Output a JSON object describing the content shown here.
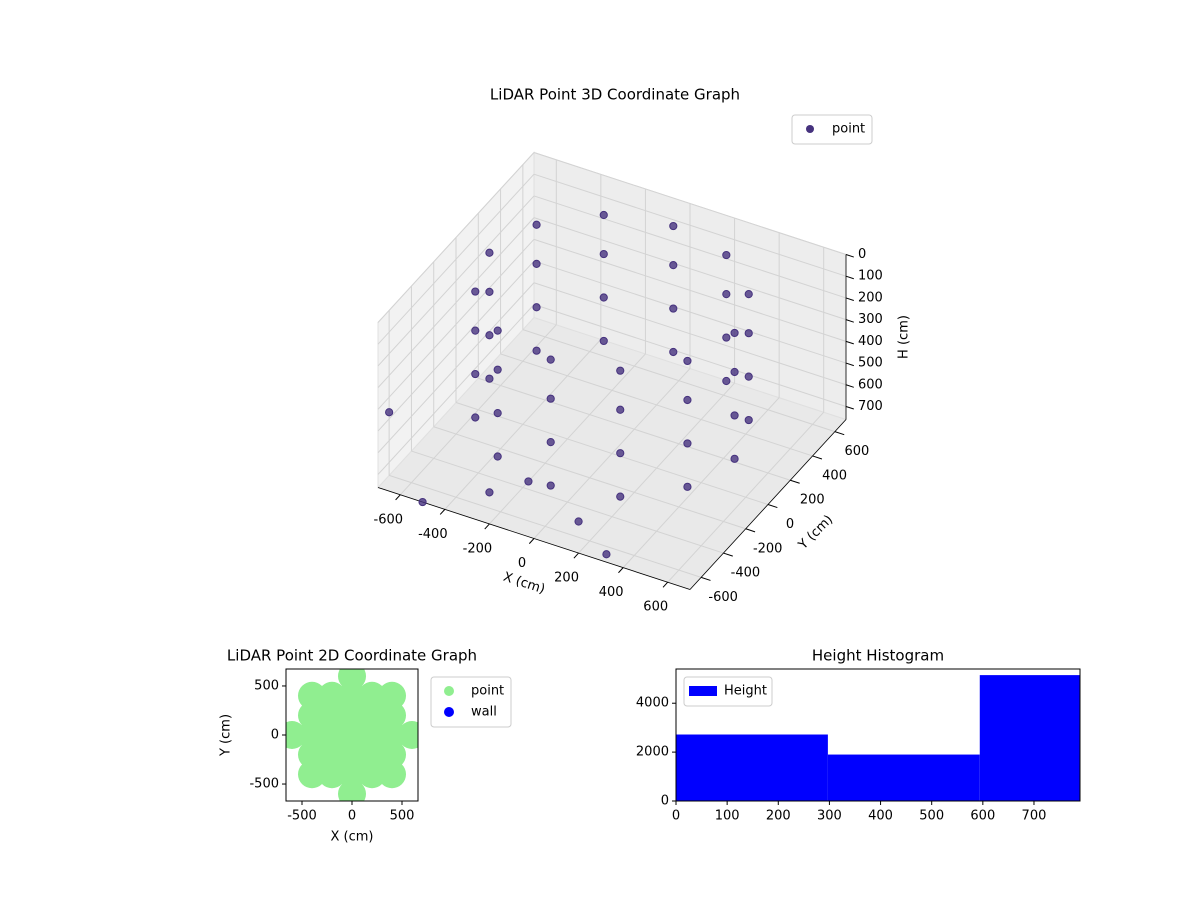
{
  "chart_data": [
    {
      "type": "scatter3d",
      "title": "LiDAR Point 3D Coordinate Graph",
      "xlabel": "X (cm)",
      "ylabel": "Y (cm)",
      "zlabel": "H (cm)",
      "xlim": [
        -700,
        700
      ],
      "ylim": [
        -700,
        700
      ],
      "zlim": [
        760,
        0
      ],
      "xticks": [
        -600,
        -400,
        -200,
        0,
        200,
        400,
        600
      ],
      "yticks": [
        -600,
        -400,
        -200,
        0,
        200,
        400,
        600
      ],
      "zticks": [
        0,
        100,
        200,
        300,
        400,
        500,
        600,
        700
      ],
      "legend": "upper right",
      "series": [
        {
          "name": "point",
          "color": "#46327e",
          "x": [
            550,
            476,
            275,
            0,
            -275,
            -476,
            -550,
            -476,
            -275,
            0,
            275,
            476,
            550,
            476,
            275,
            0,
            -275,
            -476,
            -550,
            -476,
            -275,
            0,
            275,
            476,
            550,
            476,
            275,
            0,
            -275,
            -476,
            -550,
            -476,
            -275,
            0,
            275,
            476,
            550,
            476,
            275,
            0,
            -275,
            -476,
            -550,
            -476,
            -275,
            0,
            275,
            476,
            -900,
            -500,
            -300,
            -200,
            100,
            300
          ],
          "y": [
            0,
            275,
            476,
            550,
            476,
            275,
            0,
            -275,
            -476,
            -550,
            -476,
            -275,
            0,
            275,
            476,
            550,
            476,
            275,
            0,
            -275,
            -476,
            -550,
            -476,
            -275,
            0,
            275,
            476,
            550,
            476,
            275,
            0,
            -275,
            -476,
            -550,
            -476,
            -275,
            0,
            275,
            476,
            550,
            476,
            275,
            0,
            -275,
            -476,
            -550,
            -476,
            -275,
            -200,
            -700,
            -500,
            -350,
            -500,
            -650
          ],
          "z": [
            20,
            20,
            20,
            20,
            20,
            20,
            20,
            20,
            20,
            20,
            20,
            20,
            200,
            200,
            200,
            200,
            200,
            200,
            200,
            200,
            200,
            200,
            200,
            200,
            400,
            400,
            400,
            400,
            400,
            400,
            400,
            400,
            400,
            400,
            400,
            400,
            600,
            600,
            600,
            600,
            600,
            600,
            600,
            600,
            600,
            600,
            600,
            600,
            760,
            760,
            760,
            760,
            760,
            760
          ]
        }
      ]
    },
    {
      "type": "scatter",
      "title": "LiDAR Point 2D Coordinate Graph",
      "xlabel": "X (cm)",
      "ylabel": "Y (cm)",
      "xlim": [
        -660,
        660
      ],
      "ylim": [
        -673,
        673
      ],
      "xticks": [
        -500,
        0,
        500
      ],
      "yticks": [
        -500,
        0,
        500
      ],
      "legend": "outside right",
      "series": [
        {
          "name": "point",
          "color": "#90ee90",
          "x": [
            0,
            -400,
            -200,
            0,
            200,
            400,
            -400,
            -200,
            0,
            200,
            400,
            -600,
            -400,
            -200,
            0,
            200,
            400,
            600,
            -400,
            -200,
            0,
            200,
            400,
            -400,
            -200,
            0,
            200,
            400,
            0
          ],
          "y": [
            600,
            400,
            400,
            400,
            400,
            400,
            200,
            200,
            200,
            200,
            200,
            0,
            0,
            0,
            0,
            0,
            0,
            0,
            -200,
            -200,
            -200,
            -200,
            -200,
            -400,
            -400,
            -400,
            -400,
            -400,
            -600
          ]
        },
        {
          "name": "wall",
          "color": "#0000ff",
          "x": [],
          "y": []
        }
      ]
    },
    {
      "type": "histogram",
      "title": "Height Histogram",
      "bins": [
        0,
        297,
        594,
        790
      ],
      "xlim": [
        0,
        790
      ],
      "ylim": [
        0,
        5400
      ],
      "xticks": [
        0,
        100,
        200,
        300,
        400,
        500,
        600,
        700
      ],
      "yticks": [
        0,
        2000,
        4000
      ],
      "legend": "upper left",
      "series": [
        {
          "name": "Height",
          "color": "#0000ff",
          "values": [
            2720,
            1900,
            5150
          ]
        }
      ]
    }
  ]
}
